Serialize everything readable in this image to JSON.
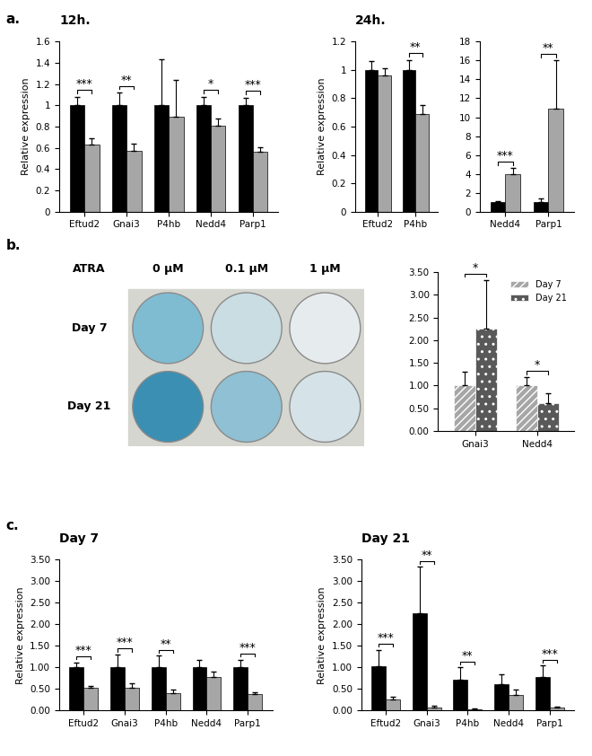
{
  "panels": [
    "a.",
    "b.",
    "c."
  ],
  "plate_image": {
    "title": "ATRA",
    "columns": [
      "0 µM",
      "0.1 µM",
      "1 µM"
    ],
    "rows": [
      "Day 7",
      "Day 21"
    ]
  },
  "chart_data": [
    {
      "type": "bar",
      "title": "12h.",
      "y_label": "Relative expression",
      "categories": [
        "Eftud2",
        "Gnai3",
        "P4hb",
        "Nedd4",
        "Parp1"
      ],
      "series": [
        {
          "color": "#000000",
          "values": [
            1.0,
            1.0,
            1.0,
            1.0,
            1.0
          ],
          "errors": [
            0.08,
            0.12,
            0.43,
            0.08,
            0.07
          ]
        },
        {
          "color": "#a6a6a6",
          "values": [
            0.63,
            0.57,
            0.89,
            0.81,
            0.56
          ],
          "errors": [
            0.06,
            0.07,
            0.35,
            0.07,
            0.05
          ]
        }
      ],
      "significance": [
        "***",
        "**",
        null,
        "*",
        "***"
      ],
      "ylim": [
        0,
        1.6
      ],
      "yticks": [
        0,
        0.2,
        0.4,
        0.6,
        0.8,
        1,
        1.2,
        1.4,
        1.6
      ]
    },
    {
      "type": "bar",
      "title": "24h.",
      "y_label": "Relative expression",
      "categories": [
        "Eftud2",
        "P4hb"
      ],
      "series": [
        {
          "color": "#000000",
          "values": [
            1.0,
            1.0
          ],
          "errors": [
            0.06,
            0.07
          ]
        },
        {
          "color": "#a6a6a6",
          "values": [
            0.96,
            0.69
          ],
          "errors": [
            0.05,
            0.06
          ]
        }
      ],
      "significance": [
        null,
        "**"
      ],
      "ylim": [
        0,
        1.2
      ],
      "yticks": [
        0,
        0.2,
        0.4,
        0.6,
        0.8,
        1,
        1.2
      ]
    },
    {
      "type": "bar",
      "categories": [
        "Nedd4",
        "Parp1"
      ],
      "series": [
        {
          "color": "#000000",
          "values": [
            1.0,
            1.0
          ],
          "errors": [
            0.15,
            0.4
          ]
        },
        {
          "color": "#a6a6a6",
          "values": [
            4.0,
            10.9
          ],
          "errors": [
            0.6,
            5.1
          ]
        }
      ],
      "significance": [
        "***",
        "**"
      ],
      "ylim": [
        0,
        18
      ],
      "yticks": [
        0,
        2,
        4,
        6,
        8,
        10,
        12,
        14,
        16,
        18
      ]
    },
    {
      "type": "bar",
      "legend": "upper right",
      "categories": [
        "Gnai3",
        "Nedd4"
      ],
      "series": [
        {
          "name": "Day 7",
          "color": "#a6a6a6",
          "values": [
            1.0,
            1.0
          ],
          "errors": [
            0.3,
            0.18
          ]
        },
        {
          "name": "Day 21",
          "color": "#595959",
          "values": [
            2.25,
            0.62
          ],
          "errors": [
            1.08,
            0.22
          ]
        }
      ],
      "significance": [
        "*",
        "*"
      ],
      "ylim": [
        0,
        3.5
      ],
      "yticks": [
        {
          "value": 0,
          "label": "0.00"
        },
        {
          "value": 0.5,
          "label": "0.50"
        },
        {
          "value": 1,
          "label": "1.00"
        },
        {
          "value": 1.5,
          "label": "1.50"
        },
        {
          "value": 2,
          "label": "2.00"
        },
        {
          "value": 2.5,
          "label": "2.50"
        },
        {
          "value": 3,
          "label": "3.00"
        },
        {
          "value": 3.5,
          "label": "3.50"
        }
      ]
    },
    {
      "type": "bar",
      "title": "Day 7",
      "y_label": "Relative expression",
      "categories": [
        "Eftud2",
        "Gnai3",
        "P4hb",
        "Nedd4",
        "Parp1"
      ],
      "series": [
        {
          "color": "#000000",
          "values": [
            1.0,
            1.0,
            1.0,
            1.0,
            1.0
          ],
          "errors": [
            0.12,
            0.3,
            0.27,
            0.17,
            0.18
          ]
        },
        {
          "color": "#a6a6a6",
          "values": [
            0.52,
            0.52,
            0.41,
            0.78,
            0.38
          ],
          "errors": [
            0.05,
            0.12,
            0.07,
            0.12,
            0.05
          ]
        }
      ],
      "significance": [
        "***",
        "***",
        "**",
        null,
        "***"
      ],
      "ylim": [
        0,
        3.5
      ],
      "yticks": [
        {
          "value": 0,
          "label": "0.00"
        },
        {
          "value": 0.5,
          "label": "0.50"
        },
        {
          "value": 1,
          "label": "1.00"
        },
        {
          "value": 1.5,
          "label": "1.50"
        },
        {
          "value": 2,
          "label": "2.00"
        },
        {
          "value": 2.5,
          "label": "2.50"
        },
        {
          "value": 3,
          "label": "3.00"
        },
        {
          "value": 3.5,
          "label": "3.50"
        }
      ]
    },
    {
      "type": "bar",
      "title": "Day 21",
      "y_label": "Relative expression",
      "categories": [
        "Eftud2",
        "Gnai3",
        "P4hb",
        "Nedd4",
        "Parp1"
      ],
      "series": [
        {
          "color": "#000000",
          "values": [
            1.03,
            2.25,
            0.72,
            0.62,
            0.77
          ],
          "errors": [
            0.38,
            1.08,
            0.28,
            0.22,
            0.27
          ]
        },
        {
          "color": "#a6a6a6",
          "values": [
            0.25,
            0.08,
            0.04,
            0.36,
            0.07
          ],
          "errors": [
            0.08,
            0.04,
            0.02,
            0.12,
            0.02
          ]
        }
      ],
      "significance": [
        "***",
        "**",
        "**",
        null,
        "***"
      ],
      "ylim": [
        0,
        3.5
      ],
      "yticks": [
        {
          "value": 0,
          "label": "0.00"
        },
        {
          "value": 0.5,
          "label": "0.50"
        },
        {
          "value": 1,
          "label": "1.00"
        },
        {
          "value": 1.5,
          "label": "1.50"
        },
        {
          "value": 2,
          "label": "2.00"
        },
        {
          "value": 2.5,
          "label": "2.50"
        },
        {
          "value": 3,
          "label": "3.00"
        },
        {
          "value": 3.5,
          "label": "3.50"
        }
      ]
    }
  ]
}
